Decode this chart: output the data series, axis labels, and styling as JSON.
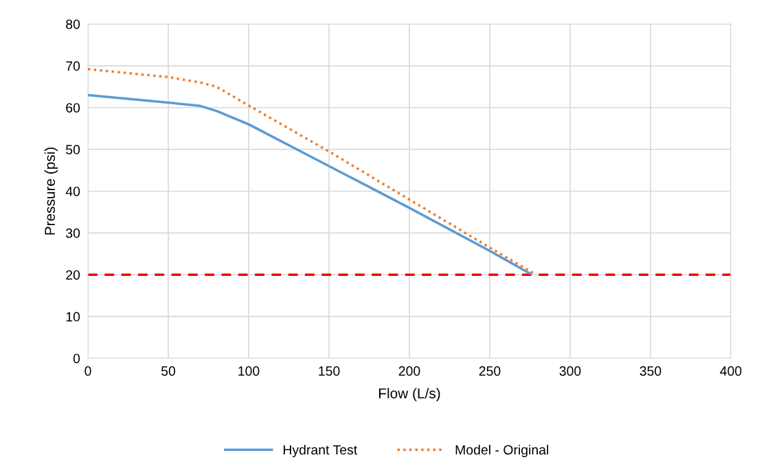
{
  "chart_data": {
    "type": "line",
    "xlabel": "Flow (L/s)",
    "ylabel": "Pressure (psi)",
    "xlim": [
      0,
      400
    ],
    "xticks": [
      0,
      50,
      100,
      150,
      200,
      250,
      300,
      350,
      400
    ],
    "ylim": [
      0,
      80
    ],
    "yticks": [
      0,
      10,
      20,
      30,
      40,
      50,
      60,
      70,
      80
    ],
    "grid": true,
    "legend": "bottom",
    "marker": "none",
    "series": [
      {
        "name": "Hydrant Test",
        "color": "#5b9bd5",
        "line_style": "solid",
        "x": [
          0,
          50,
          70,
          80,
          100,
          150,
          200,
          250,
          275
        ],
        "values": [
          63,
          61.2,
          60.4,
          59.2,
          56,
          46,
          36,
          25.7,
          20.3
        ]
      },
      {
        "name": "Model - Original",
        "color": "#ed7d31",
        "line_style": "dotted",
        "x": [
          0,
          50,
          70,
          80,
          100,
          150,
          200,
          250,
          278
        ],
        "values": [
          69.2,
          67.3,
          66,
          65,
          60.5,
          49.5,
          38,
          26.5,
          20.2
        ]
      }
    ],
    "ref_lines": [
      {
        "axis": "y",
        "value": 20,
        "color": "#ff0000",
        "line_style": "dashed"
      }
    ]
  }
}
